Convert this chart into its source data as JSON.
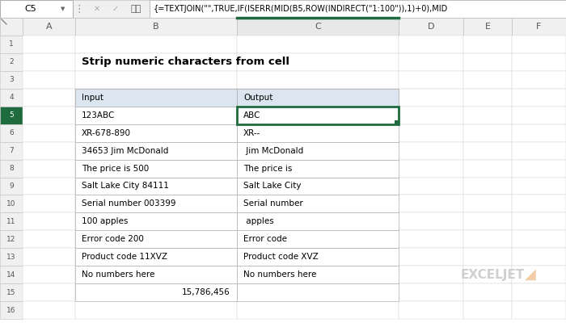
{
  "title": "Strip numeric characters from cell",
  "formula_bar_cell": "C5",
  "formula_bar_text": "{=TEXTJOIN(\"\",TRUE,IF(ISERR(MID(B5,ROW(INDIRECT(\"1:100\")),1)+0),MID",
  "col_headers": [
    "",
    "A",
    "B",
    "C",
    "D",
    "E",
    "F"
  ],
  "col_header_bg": "#dce6f1",
  "table_header_bg": "#dce6f1",
  "active_cell_border": "#1f6b3e",
  "input_col_header": "Input",
  "output_col_header": "Output",
  "rows": [
    {
      "input": "123ABC",
      "output": "ABC"
    },
    {
      "input": "XR-678-890",
      "output": "XR--"
    },
    {
      "input": "34653 Jim McDonald",
      "output": " Jim McDonald"
    },
    {
      "input": "The price is 500",
      "output": "The price is "
    },
    {
      "input": "Salt Lake City 84111",
      "output": "Salt Lake City "
    },
    {
      "input": "Serial number 003399",
      "output": "Serial number "
    },
    {
      "input": "100 apples",
      "output": " apples"
    },
    {
      "input": "Error code 200",
      "output": "Error code "
    },
    {
      "input": "Product code 11XVZ",
      "output": "Product code XVZ"
    },
    {
      "input": "No numbers here",
      "output": "No numbers here"
    }
  ],
  "row15_input": "15,786,456",
  "exceljet_text": "EXCELJET",
  "exceljet_color": "#c8c8c8",
  "exceljet_arrow_color": "#f0c8a0",
  "bg_color": "#ffffff",
  "toolbar_bg": "#f0f0f0",
  "cell_ref_bg": "#ffffff",
  "body_text_color": "#000000",
  "title_color": "#000000",
  "col_header_text": "#555555",
  "active_col_header_top": "#1f6b3e",
  "active_col_header_bg": "#e8e8e8",
  "row_num_bg": "#f0f0f0",
  "row_num_text": "#555555",
  "active_row_num_bg": "#1f6b3e",
  "active_row_num_text": "#ffffff",
  "grid_color": "#d0d0d0",
  "table_border_color": "#b0b0b0"
}
